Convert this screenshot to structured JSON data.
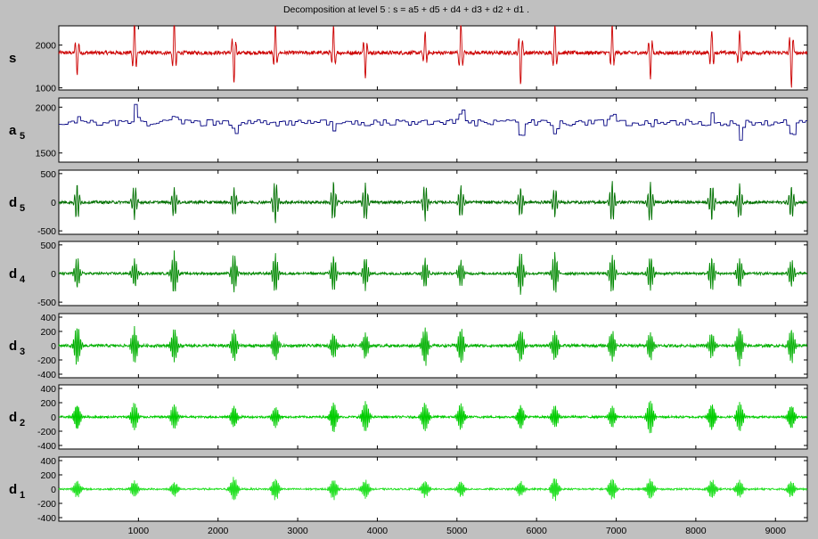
{
  "chart_data": {
    "type": "line",
    "title": "Decomposition at level 5 : s = a5 + d5 + d4 + d3 + d2 + d1 .",
    "xlim": [
      0,
      9400
    ],
    "xticks": [
      1000,
      2000,
      3000,
      4000,
      5000,
      6000,
      7000,
      8000,
      9000
    ],
    "beat_positions": [
      230,
      950,
      1450,
      2200,
      2720,
      3450,
      3850,
      4600,
      5050,
      5800,
      6230,
      6950,
      7430,
      8200,
      8550,
      9200
    ],
    "grid": false,
    "panels": [
      {
        "label": "s",
        "sub": "",
        "color": "#cc0000",
        "ylim": [
          950,
          2450
        ],
        "baseline": 1820,
        "yticks": [
          1000,
          2000
        ],
        "amp": 850,
        "noise": 45
      },
      {
        "label": "a",
        "sub": "5",
        "color": "#000080",
        "ylim": [
          1400,
          2100
        ],
        "baseline": 1830,
        "yticks": [
          1500,
          2000
        ],
        "amp": 230,
        "noise": 35
      },
      {
        "label": "d",
        "sub": "5",
        "color": "#007000",
        "ylim": [
          -560,
          560
        ],
        "baseline": 0,
        "yticks": [
          -500,
          0,
          500
        ],
        "amp": 420,
        "noise": 25
      },
      {
        "label": "d",
        "sub": "4",
        "color": "#008800",
        "ylim": [
          -560,
          560
        ],
        "baseline": 0,
        "yticks": [
          -500,
          0,
          500
        ],
        "amp": 420,
        "noise": 22
      },
      {
        "label": "d",
        "sub": "3",
        "color": "#00b000",
        "ylim": [
          -450,
          450
        ],
        "baseline": 0,
        "yticks": [
          -400,
          -200,
          0,
          200,
          400
        ],
        "amp": 300,
        "noise": 20
      },
      {
        "label": "d",
        "sub": "2",
        "color": "#00cc00",
        "ylim": [
          -450,
          450
        ],
        "baseline": 0,
        "yticks": [
          -400,
          -200,
          0,
          200,
          400
        ],
        "amp": 250,
        "noise": 15
      },
      {
        "label": "d",
        "sub": "1",
        "color": "#22e022",
        "ylim": [
          -450,
          450
        ],
        "baseline": 0,
        "yticks": [
          -400,
          -200,
          0,
          200,
          400
        ],
        "amp": 180,
        "noise": 12
      }
    ]
  }
}
